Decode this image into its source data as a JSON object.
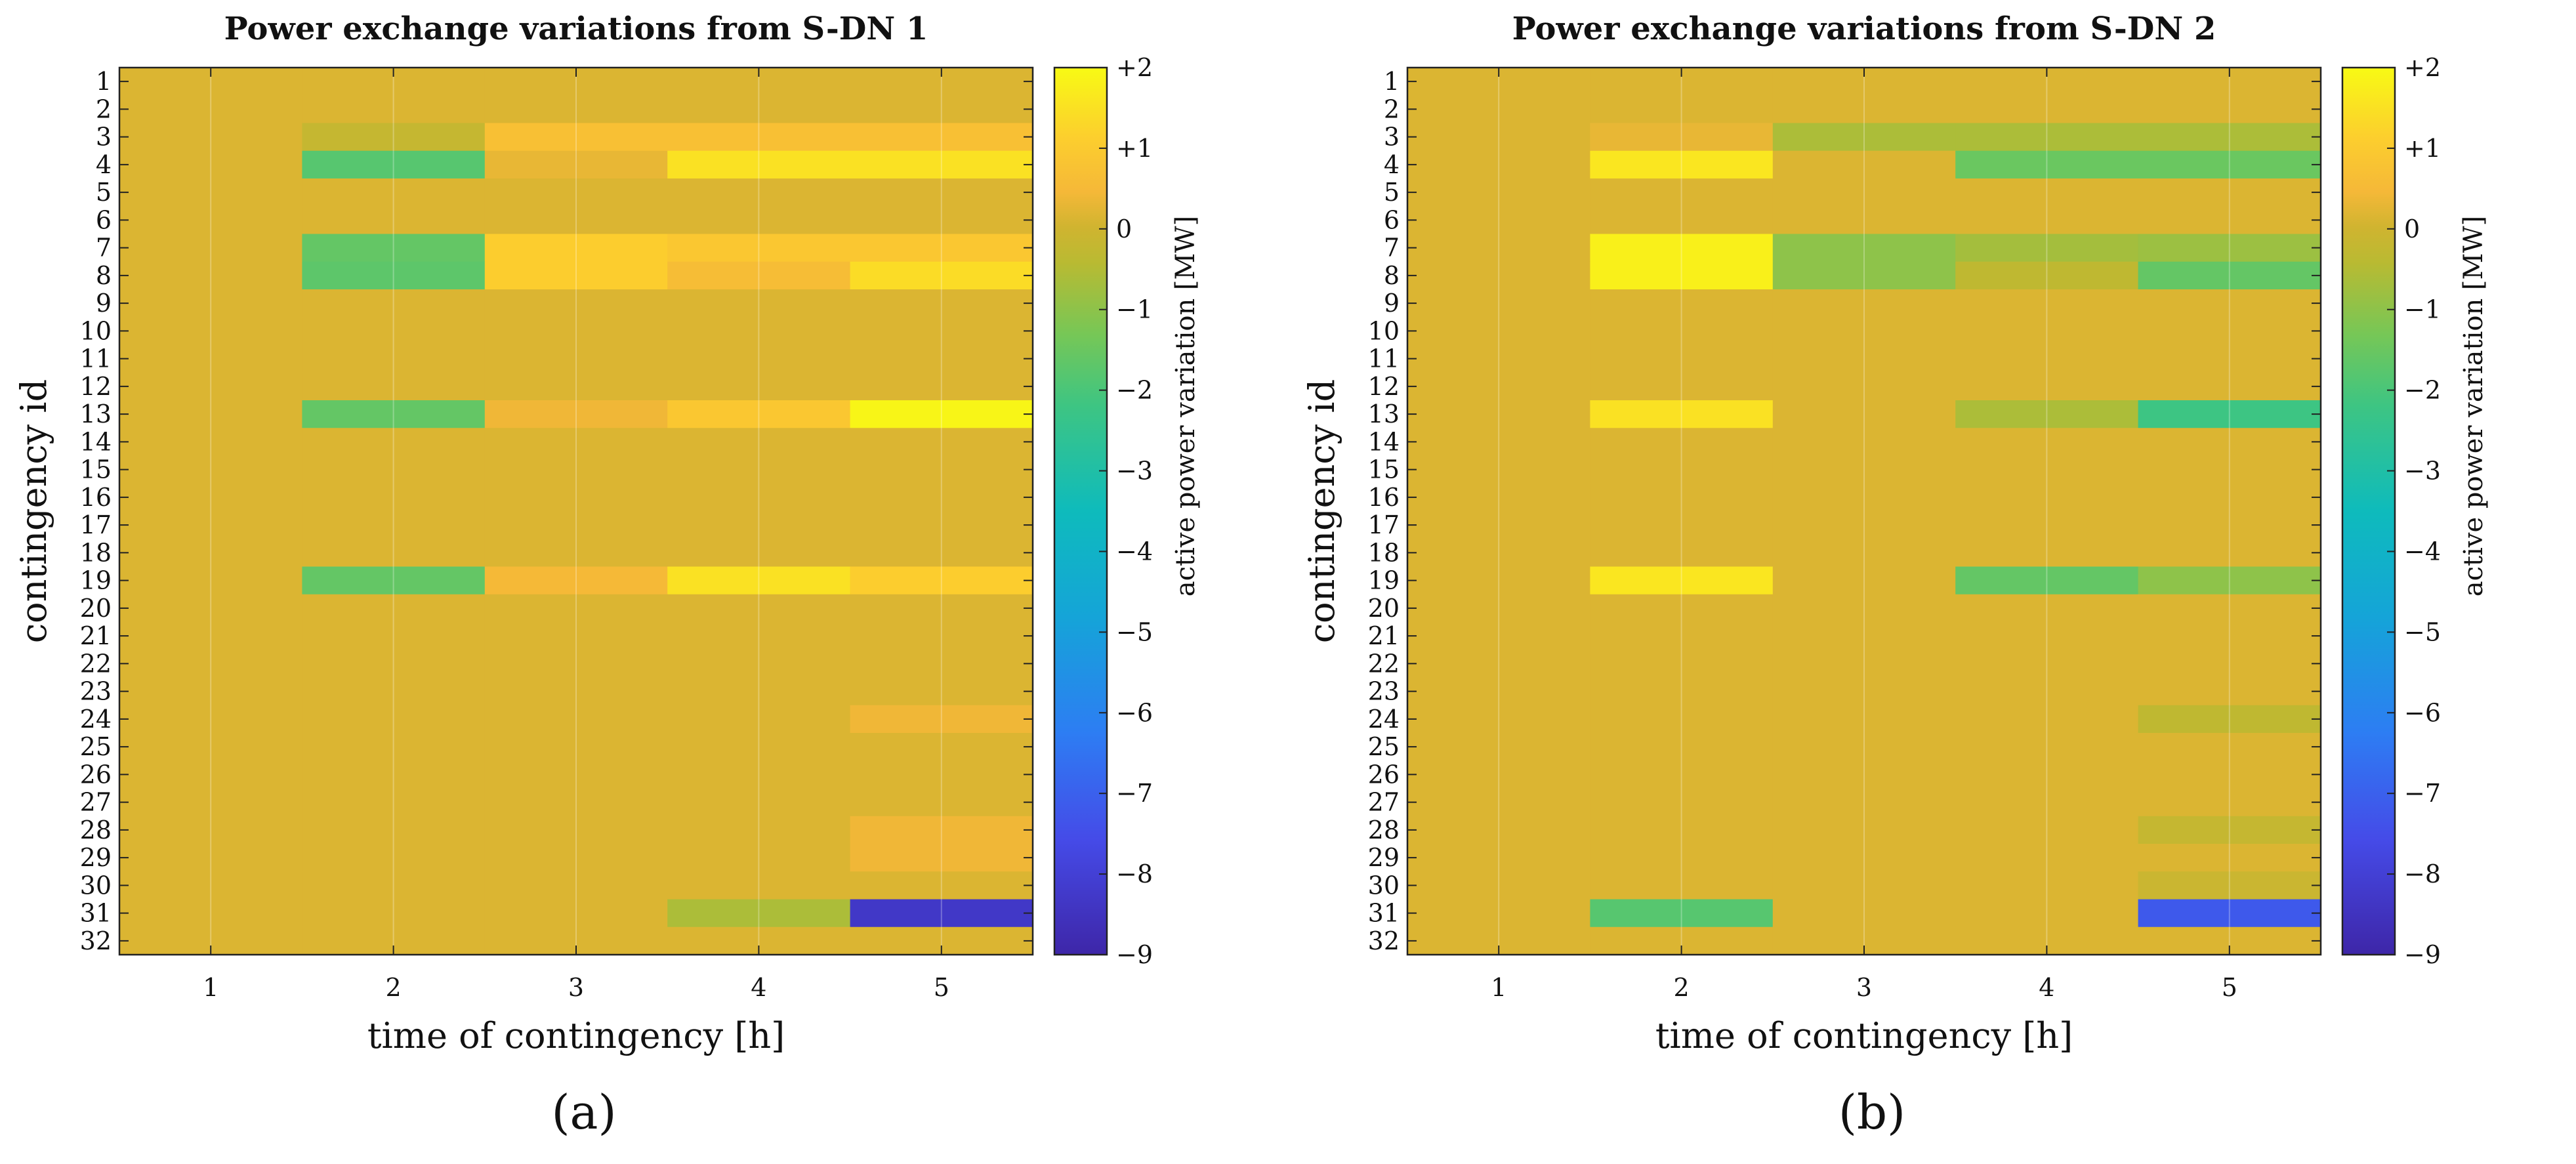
{
  "chart_data": [
    {
      "type": "heatmap",
      "subfigure_label": "(a)",
      "title": "Power exchange variations from S-DN 1",
      "xlabel": "time of contingency [h]",
      "ylabel": "contingency id",
      "colorbar_label": "active power variation [MW]",
      "x_categories": [
        "1",
        "2",
        "3",
        "4",
        "5"
      ],
      "y_categories": [
        "1",
        "2",
        "3",
        "4",
        "5",
        "6",
        "7",
        "8",
        "9",
        "10",
        "11",
        "12",
        "13",
        "14",
        "15",
        "16",
        "17",
        "18",
        "19",
        "20",
        "21",
        "22",
        "23",
        "24",
        "25",
        "26",
        "27",
        "28",
        "29",
        "30",
        "31",
        "32"
      ],
      "color_range": [
        -9,
        2
      ],
      "colorbar_ticks": [
        "+2",
        "+1",
        "0",
        "−1",
        "−2",
        "−3",
        "−4",
        "−5",
        "−6",
        "−7",
        "−8",
        "−9"
      ],
      "default_value": 0.15,
      "cells": [
        {
          "row": 3,
          "col": 2,
          "value": -0.2
        },
        {
          "row": 3,
          "col": 3,
          "value": 0.7
        },
        {
          "row": 3,
          "col": 4,
          "value": 0.7
        },
        {
          "row": 3,
          "col": 5,
          "value": 0.7
        },
        {
          "row": 4,
          "col": 2,
          "value": -1.8
        },
        {
          "row": 4,
          "col": 3,
          "value": 0.3
        },
        {
          "row": 4,
          "col": 4,
          "value": 1.5
        },
        {
          "row": 4,
          "col": 5,
          "value": 1.5
        },
        {
          "row": 7,
          "col": 2,
          "value": -1.6
        },
        {
          "row": 7,
          "col": 3,
          "value": 1.1
        },
        {
          "row": 7,
          "col": 4,
          "value": 0.9
        },
        {
          "row": 7,
          "col": 5,
          "value": 0.9
        },
        {
          "row": 8,
          "col": 2,
          "value": -1.7
        },
        {
          "row": 8,
          "col": 3,
          "value": 1.1
        },
        {
          "row": 8,
          "col": 4,
          "value": 0.6
        },
        {
          "row": 8,
          "col": 5,
          "value": 1.4
        },
        {
          "row": 13,
          "col": 2,
          "value": -1.6
        },
        {
          "row": 13,
          "col": 3,
          "value": 0.4
        },
        {
          "row": 13,
          "col": 4,
          "value": 0.9
        },
        {
          "row": 13,
          "col": 5,
          "value": 1.9
        },
        {
          "row": 19,
          "col": 2,
          "value": -1.6
        },
        {
          "row": 19,
          "col": 3,
          "value": 0.5
        },
        {
          "row": 19,
          "col": 4,
          "value": 1.5
        },
        {
          "row": 19,
          "col": 5,
          "value": 1.1
        },
        {
          "row": 24,
          "col": 5,
          "value": 0.4
        },
        {
          "row": 28,
          "col": 5,
          "value": 0.4
        },
        {
          "row": 29,
          "col": 5,
          "value": 0.4
        },
        {
          "row": 31,
          "col": 4,
          "value": -0.6
        },
        {
          "row": 31,
          "col": 5,
          "value": -8.3
        }
      ]
    },
    {
      "type": "heatmap",
      "subfigure_label": "(b)",
      "title": "Power exchange variations from S-DN 2",
      "xlabel": "time of contingency [h]",
      "ylabel": "contingency id",
      "colorbar_label": "active power variation [MW]",
      "x_categories": [
        "1",
        "2",
        "3",
        "4",
        "5"
      ],
      "y_categories": [
        "1",
        "2",
        "3",
        "4",
        "5",
        "6",
        "7",
        "8",
        "9",
        "10",
        "11",
        "12",
        "13",
        "14",
        "15",
        "16",
        "17",
        "18",
        "19",
        "20",
        "21",
        "22",
        "23",
        "24",
        "25",
        "26",
        "27",
        "28",
        "29",
        "30",
        "31",
        "32"
      ],
      "color_range": [
        -9,
        2
      ],
      "colorbar_ticks": [
        "+2",
        "+1",
        "0",
        "−1",
        "−2",
        "−3",
        "−4",
        "−5",
        "−6",
        "−7",
        "−8",
        "−9"
      ],
      "default_value": 0.15,
      "cells": [
        {
          "row": 3,
          "col": 2,
          "value": 0.3
        },
        {
          "row": 3,
          "col": 3,
          "value": -0.6
        },
        {
          "row": 3,
          "col": 4,
          "value": -0.6
        },
        {
          "row": 3,
          "col": 5,
          "value": -0.6
        },
        {
          "row": 4,
          "col": 2,
          "value": 1.6
        },
        {
          "row": 4,
          "col": 4,
          "value": -1.5
        },
        {
          "row": 4,
          "col": 5,
          "value": -1.5
        },
        {
          "row": 7,
          "col": 2,
          "value": 1.8
        },
        {
          "row": 7,
          "col": 3,
          "value": -1.0
        },
        {
          "row": 7,
          "col": 4,
          "value": -0.7
        },
        {
          "row": 7,
          "col": 5,
          "value": -0.8
        },
        {
          "row": 8,
          "col": 2,
          "value": 1.8
        },
        {
          "row": 8,
          "col": 3,
          "value": -1.0
        },
        {
          "row": 8,
          "col": 4,
          "value": -0.3
        },
        {
          "row": 8,
          "col": 5,
          "value": -1.6
        },
        {
          "row": 13,
          "col": 2,
          "value": 1.5
        },
        {
          "row": 13,
          "col": 4,
          "value": -0.6
        },
        {
          "row": 13,
          "col": 5,
          "value": -2.2
        },
        {
          "row": 19,
          "col": 2,
          "value": 1.6
        },
        {
          "row": 19,
          "col": 4,
          "value": -1.6
        },
        {
          "row": 19,
          "col": 5,
          "value": -1.0
        },
        {
          "row": 24,
          "col": 5,
          "value": -0.3
        },
        {
          "row": 28,
          "col": 5,
          "value": -0.2
        },
        {
          "row": 30,
          "col": 5,
          "value": -0.1
        },
        {
          "row": 31,
          "col": 2,
          "value": -1.8
        },
        {
          "row": 31,
          "col": 5,
          "value": -7.2
        }
      ]
    }
  ]
}
